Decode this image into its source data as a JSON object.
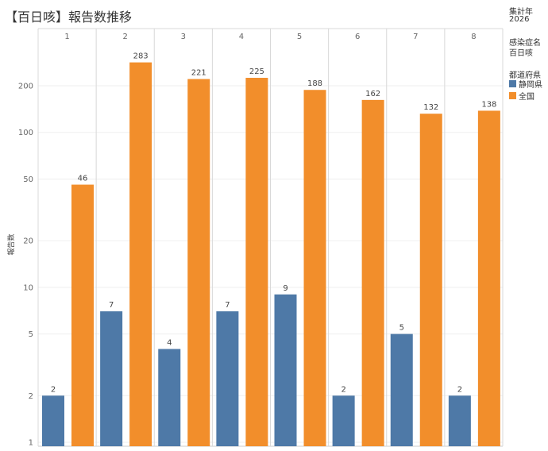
{
  "title": "【百日咳】報告数推移",
  "side": {
    "year_label": "集計年",
    "year_value": "2026",
    "disease_label": "感染症名",
    "disease_value": "百日咳",
    "legend_title": "都道府県"
  },
  "colors": {
    "shizuoka": "#4e79a7",
    "national": "#f28e2b"
  },
  "chart_data": {
    "type": "bar",
    "title": "【百日咳】報告数推移",
    "ylabel": "報告数",
    "xlabel": "",
    "yscale": "log",
    "ylim": [
      1,
      400
    ],
    "yticks": [
      1,
      2,
      5,
      10,
      20,
      50,
      100,
      200
    ],
    "categories": [
      "1",
      "2",
      "3",
      "4",
      "5",
      "6",
      "7",
      "8"
    ],
    "series": [
      {
        "name": "静岡県",
        "color": "#4e79a7",
        "values": [
          2,
          7,
          4,
          7,
          9,
          2,
          5,
          2
        ]
      },
      {
        "name": "全国",
        "color": "#f28e2b",
        "values": [
          46,
          283,
          221,
          225,
          188,
          162,
          132,
          138
        ]
      }
    ],
    "legend_position": "right"
  }
}
